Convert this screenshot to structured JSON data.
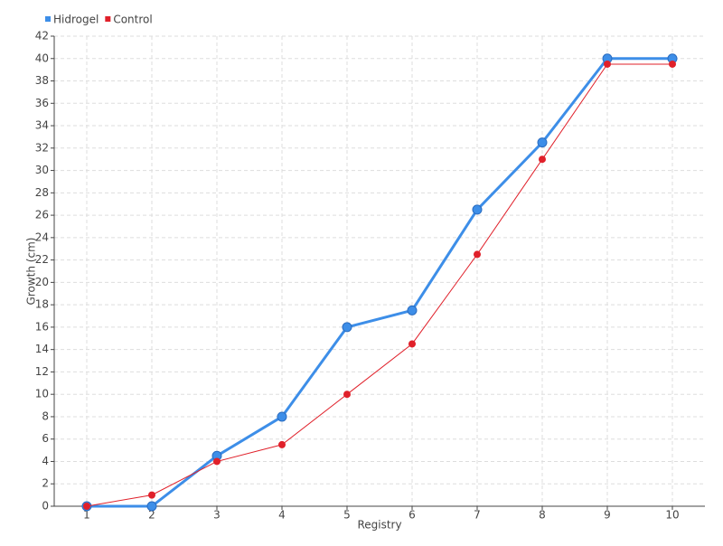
{
  "chart_data": {
    "type": "line",
    "x_label": "Registry",
    "y_label": "Growth (cm)",
    "x": [
      1,
      2,
      3,
      4,
      5,
      6,
      7,
      8,
      9,
      10
    ],
    "series": [
      {
        "name": "Hidrogel",
        "color": "#3d8ee8",
        "values": [
          0,
          0,
          4.5,
          8,
          16,
          17.5,
          26.5,
          32.5,
          40,
          40
        ]
      },
      {
        "name": "Control",
        "color": "#e0202a",
        "values": [
          0,
          1,
          4,
          5.5,
          10,
          14.5,
          22.5,
          31,
          39.5,
          39.5
        ]
      }
    ],
    "xlim": [
      0.5,
      10.5
    ],
    "xticks": [
      1,
      2,
      3,
      4,
      5,
      6,
      7,
      8,
      9,
      10
    ],
    "ylim": [
      0,
      42
    ],
    "yticks": [
      0,
      2,
      4,
      6,
      8,
      10,
      12,
      14,
      16,
      18,
      20,
      22,
      24,
      26,
      28,
      30,
      32,
      34,
      36,
      38,
      40,
      42
    ],
    "grid": true,
    "legend": "top-left"
  }
}
